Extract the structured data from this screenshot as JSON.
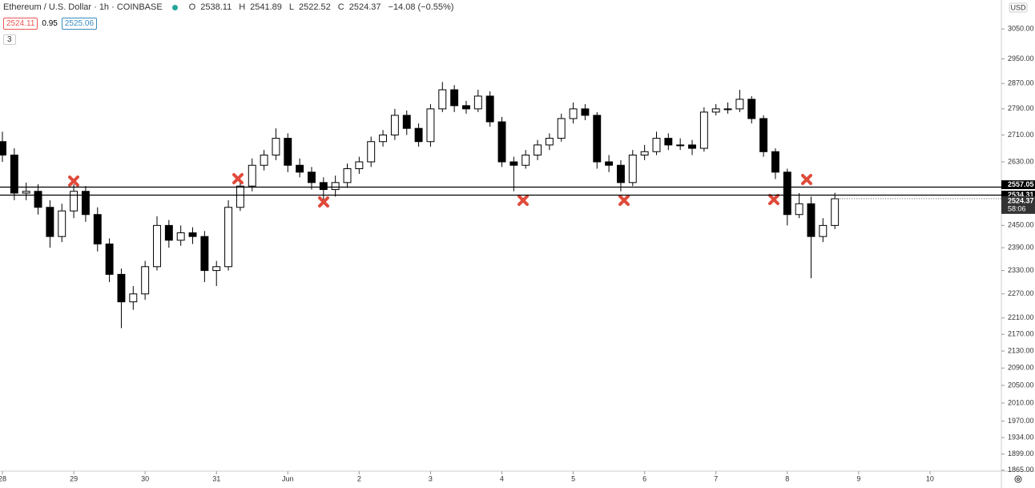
{
  "chart_data": {
    "type": "candlestick",
    "title": "Ethereum / U.S. Dollar · 1h · COINBASE",
    "ohlc_legend": [
      {
        "label": "O",
        "value": 2538.11
      },
      {
        "label": "H",
        "value": 2541.89
      },
      {
        "label": "L",
        "value": 2522.52
      },
      {
        "label": "C",
        "value": 2524.37
      }
    ],
    "change": "−14.08 (−0.55%)",
    "bid": 2524.11,
    "spread": 0.95,
    "ask": 2525.06,
    "indicators_count": 3,
    "currency": "USD",
    "log_scale": true,
    "up_color": "#ffffff",
    "down_color": "#000000",
    "border_color": "#000000",
    "categories": [
      "28",
      null,
      null,
      null,
      null,
      null,
      "29",
      null,
      null,
      null,
      null,
      null,
      "30",
      null,
      null,
      null,
      null,
      null,
      "31",
      null,
      null,
      null,
      null,
      null,
      "Jun",
      null,
      null,
      null,
      null,
      null,
      "2",
      null,
      null,
      null,
      null,
      null,
      "3",
      null,
      null,
      null,
      null,
      null,
      "4",
      null,
      null,
      null,
      null,
      null,
      "5",
      null,
      null,
      null,
      null,
      null,
      "6",
      null,
      null,
      null,
      null,
      null,
      "7",
      null,
      null,
      null,
      null,
      null,
      "8",
      null,
      null,
      null,
      null,
      null,
      "9",
      null,
      null,
      null,
      null,
      null,
      "10",
      null,
      null,
      null,
      null,
      null
    ],
    "open": [
      2690,
      2650,
      2540,
      2545,
      2500,
      2420,
      2490,
      2545,
      2480,
      2400,
      2320,
      2250,
      2270,
      2340,
      2450,
      2410,
      2430,
      2420,
      2330,
      2340,
      2500,
      2560,
      2620,
      2650,
      2700,
      2620,
      2600,
      2570,
      2550,
      2570,
      2610,
      2630,
      2690,
      2710,
      2770,
      2730,
      2690,
      2790,
      2850,
      2800,
      2790,
      2830,
      2750,
      2630,
      2620,
      2650,
      2680,
      2700,
      2760,
      2790,
      2770,
      2630,
      2620,
      2570,
      2650,
      2660,
      2700,
      2680,
      2680,
      2670,
      2780,
      2790,
      2790,
      2820,
      2760,
      2660,
      2600,
      2480,
      2510,
      2420,
      2450,
      null,
      null,
      null,
      null,
      null,
      null,
      null,
      null,
      null,
      null,
      null,
      null,
      null
    ],
    "high": [
      2720,
      2670,
      2570,
      2565,
      2520,
      2510,
      2565,
      2560,
      2500,
      2415,
      2335,
      2290,
      2355,
      2475,
      2465,
      2450,
      2445,
      2435,
      2355,
      2520,
      2575,
      2640,
      2665,
      2730,
      2715,
      2640,
      2615,
      2585,
      2590,
      2625,
      2645,
      2705,
      2725,
      2790,
      2785,
      2745,
      2805,
      2875,
      2865,
      2815,
      2850,
      2845,
      2765,
      2645,
      2665,
      2695,
      2715,
      2775,
      2810,
      2805,
      2780,
      2650,
      2635,
      2665,
      2680,
      2720,
      2715,
      2700,
      2695,
      2795,
      2805,
      2810,
      2850,
      2830,
      2770,
      2670,
      2610,
      2540,
      2530,
      2470,
      2541,
      null,
      null,
      null,
      null,
      null,
      null,
      null,
      null,
      null,
      null,
      null,
      null,
      null
    ],
    "low": [
      2630,
      2520,
      2520,
      2480,
      2390,
      2405,
      2470,
      2460,
      2380,
      2300,
      2185,
      2230,
      2255,
      2330,
      2390,
      2395,
      2400,
      2300,
      2290,
      2330,
      2490,
      2545,
      2605,
      2635,
      2600,
      2585,
      2550,
      2520,
      2530,
      2555,
      2595,
      2615,
      2675,
      2695,
      2710,
      2675,
      2675,
      2780,
      2780,
      2775,
      2780,
      2735,
      2615,
      2545,
      2610,
      2635,
      2665,
      2690,
      2745,
      2755,
      2610,
      2600,
      2545,
      2560,
      2635,
      2650,
      2665,
      2665,
      2650,
      2660,
      2770,
      2775,
      2780,
      2745,
      2645,
      2580,
      2450,
      2470,
      2310,
      2405,
      2440,
      null,
      null,
      null,
      null,
      null,
      null,
      null,
      null,
      null,
      null,
      null,
      null,
      null
    ],
    "close": [
      2650,
      2540,
      2545,
      2500,
      2420,
      2490,
      2545,
      2480,
      2400,
      2320,
      2250,
      2270,
      2340,
      2450,
      2410,
      2430,
      2420,
      2330,
      2340,
      2500,
      2560,
      2620,
      2650,
      2700,
      2620,
      2600,
      2570,
      2550,
      2570,
      2610,
      2630,
      2690,
      2710,
      2770,
      2730,
      2690,
      2790,
      2850,
      2800,
      2790,
      2830,
      2750,
      2630,
      2620,
      2650,
      2680,
      2700,
      2760,
      2790,
      2770,
      2630,
      2620,
      2570,
      2650,
      2660,
      2700,
      2680,
      2680,
      2670,
      2780,
      2790,
      2790,
      2820,
      2760,
      2660,
      2600,
      2480,
      2510,
      2420,
      2450,
      2524,
      null,
      null,
      null,
      null,
      null,
      null,
      null,
      null,
      null,
      null,
      null,
      null,
      null
    ],
    "ylim": [
      1863,
      3150
    ],
    "yticks": [
      {
        "value": 3050,
        "label": "3050.00"
      },
      {
        "value": 2950,
        "label": "2950.00"
      },
      {
        "value": 2870,
        "label": "2870.00"
      },
      {
        "value": 2790,
        "label": "2790.00"
      },
      {
        "value": 2710,
        "label": "2710.00"
      },
      {
        "value": 2630,
        "label": "2630.00"
      },
      {
        "value": 2450,
        "label": "2450.00"
      },
      {
        "value": 2390,
        "label": "2390.00"
      },
      {
        "value": 2330,
        "label": "2330.00"
      },
      {
        "value": 2270,
        "label": "2270.00"
      },
      {
        "value": 2210,
        "label": "2210.00"
      },
      {
        "value": 2170,
        "label": "2170.00"
      },
      {
        "value": 2130,
        "label": "2130.00"
      },
      {
        "value": 2090,
        "label": "2090.00"
      },
      {
        "value": 2050,
        "label": "2050.00"
      },
      {
        "value": 2010,
        "label": "2010.00"
      },
      {
        "value": 1970,
        "label": "1970.00"
      },
      {
        "value": 1934,
        "label": "1934.00"
      },
      {
        "value": 1899,
        "label": "1899.00"
      },
      {
        "value": 1865,
        "label": "1865.00"
      }
    ],
    "hlines": [
      2557.05,
      2534.31
    ],
    "last_price": 2524.37,
    "countdown": "58:06"
  }
}
